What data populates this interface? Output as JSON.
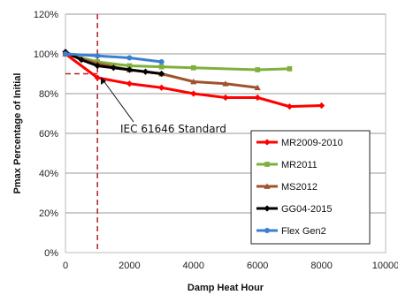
{
  "chart_data": {
    "type": "line",
    "xlabel": "Damp Heat Hour",
    "ylabel": "Pmax Percentage of Initial",
    "xlim": [
      0,
      10000
    ],
    "ylim": [
      0,
      120
    ],
    "xticks": [
      0,
      2000,
      4000,
      6000,
      8000,
      10000
    ],
    "yticks": [
      0,
      20,
      40,
      60,
      80,
      100,
      120
    ],
    "xtick_labels": [
      "0",
      "2000",
      "4000",
      "6000",
      "8000",
      "10000"
    ],
    "ytick_labels": [
      "0%",
      "20%",
      "40%",
      "60%",
      "80%",
      "100%",
      "120%"
    ],
    "grid": "horizontal",
    "legend_position": "bottom-right",
    "series": [
      {
        "name": "MR2009-2010",
        "color": "#ff0000",
        "marker": "diamond",
        "x": [
          0,
          1000,
          2000,
          3000,
          4000,
          5000,
          6000,
          7000,
          8000
        ],
        "y": [
          100,
          88,
          85,
          83,
          80,
          78,
          78,
          73.5,
          74
        ]
      },
      {
        "name": "MR2011",
        "color": "#7fb03d",
        "marker": "square",
        "x": [
          0,
          1000,
          2000,
          3000,
          4000,
          6000,
          7000
        ],
        "y": [
          100,
          96,
          94,
          93.5,
          93,
          92,
          92.5
        ]
      },
      {
        "name": "MS2012",
        "color": "#a0522d",
        "marker": "triangle",
        "x": [
          0,
          1000,
          2000,
          3000,
          4000,
          5000,
          6000
        ],
        "y": [
          100,
          95,
          92,
          90,
          86,
          85,
          83
        ]
      },
      {
        "name": "GG04-2015",
        "color": "#000000",
        "marker": "diamond",
        "x": [
          0,
          500,
          1000,
          1500,
          2000,
          2500,
          3000
        ],
        "y": [
          101,
          97,
          94,
          93,
          92,
          91,
          90
        ]
      },
      {
        "name": "Flex Gen2",
        "color": "#3b7fd4",
        "marker": "circle",
        "x": [
          0,
          1000,
          2000,
          3000
        ],
        "y": [
          100,
          99,
          98,
          96
        ]
      }
    ],
    "reference_lines": [
      {
        "orientation": "vertical",
        "value": 1000,
        "color": "#b22222",
        "style": "dashed"
      },
      {
        "orientation": "horizontal",
        "value": 90,
        "x_end": 1000,
        "color": "#b22222",
        "style": "dashed"
      }
    ],
    "annotations": [
      {
        "text": "IEC 61646 Standard",
        "arrow_to_x": 1000,
        "arrow_to_y": 90
      }
    ]
  }
}
